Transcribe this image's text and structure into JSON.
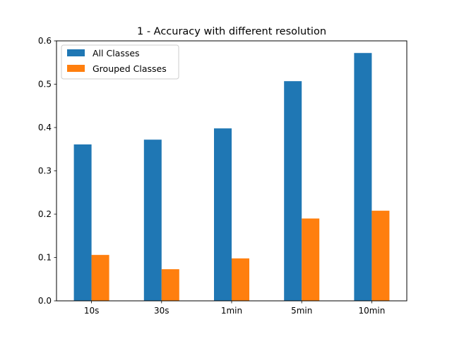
{
  "chart_data": {
    "type": "bar",
    "title": "1 - Accuracy with different resolution",
    "xlabel": "",
    "ylabel": "",
    "categories": [
      "10s",
      "30s",
      "1min",
      "5min",
      "10min"
    ],
    "series": [
      {
        "name": "All Classes",
        "color": "#1f77b4",
        "values": [
          0.361,
          0.372,
          0.398,
          0.507,
          0.572
        ]
      },
      {
        "name": "Grouped Classes",
        "color": "#ff7f0e",
        "values": [
          0.106,
          0.073,
          0.098,
          0.19,
          0.208
        ]
      }
    ],
    "ylim": [
      0,
      0.6
    ],
    "yticks": [
      "0.0",
      "0.1",
      "0.2",
      "0.3",
      "0.4",
      "0.5",
      "0.6"
    ],
    "grid": false,
    "legend_position": "top-left"
  }
}
